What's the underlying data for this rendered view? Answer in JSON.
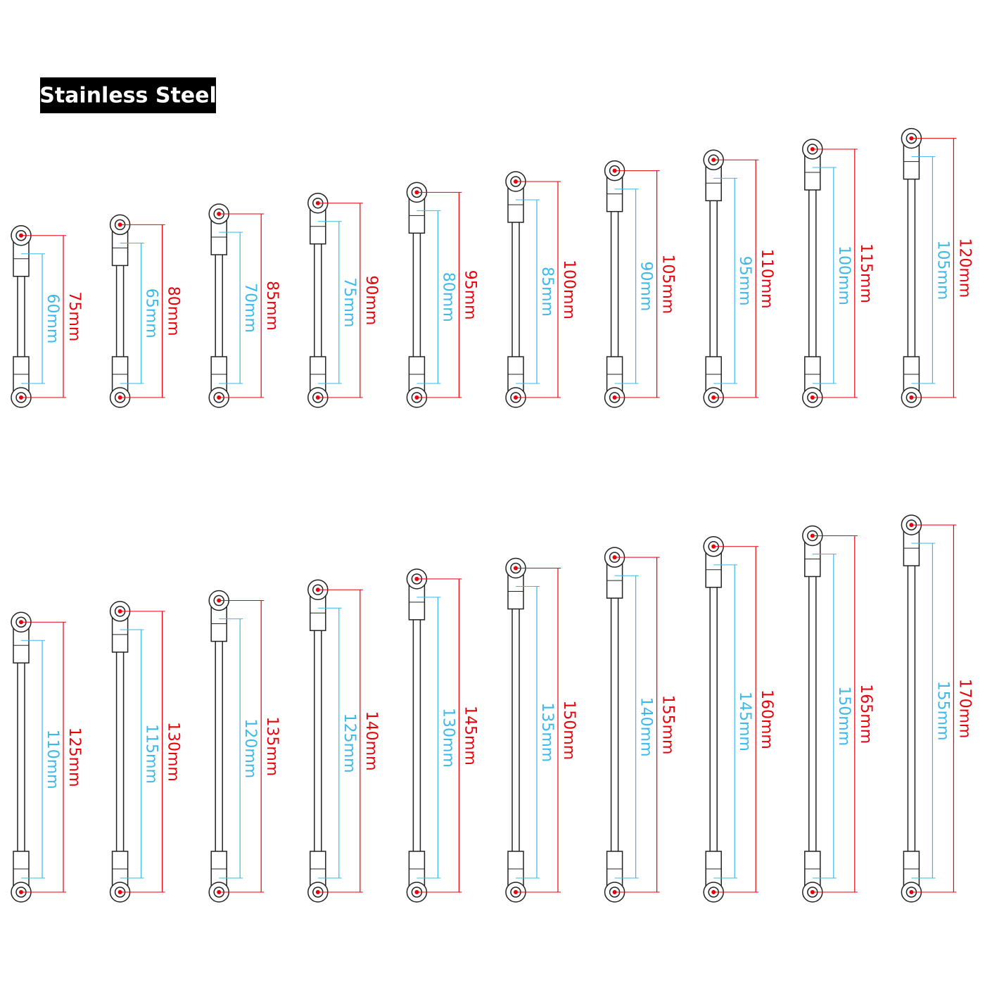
{
  "header": {
    "title": "Stainless Steel"
  },
  "rows": [
    {
      "links": [
        {
          "total": {
            "value": 75,
            "label": "75mm"
          },
          "rod": {
            "value": 60,
            "label": "60mm"
          }
        },
        {
          "total": {
            "value": 80,
            "label": "80mm"
          },
          "rod": {
            "value": 65,
            "label": "65mm"
          }
        },
        {
          "total": {
            "value": 85,
            "label": "85mm"
          },
          "rod": {
            "value": 70,
            "label": "70mm"
          }
        },
        {
          "total": {
            "value": 90,
            "label": "90mm"
          },
          "rod": {
            "value": 75,
            "label": "75mm"
          }
        },
        {
          "total": {
            "value": 95,
            "label": "95mm"
          },
          "rod": {
            "value": 80,
            "label": "80mm"
          }
        },
        {
          "total": {
            "value": 100,
            "label": "100mm"
          },
          "rod": {
            "value": 85,
            "label": "85mm"
          }
        },
        {
          "total": {
            "value": 105,
            "label": "105mm"
          },
          "rod": {
            "value": 90,
            "label": "90mm"
          }
        },
        {
          "total": {
            "value": 110,
            "label": "110mm"
          },
          "rod": {
            "value": 95,
            "label": "95mm"
          }
        },
        {
          "total": {
            "value": 115,
            "label": "115mm"
          },
          "rod": {
            "value": 100,
            "label": "100mm"
          }
        },
        {
          "total": {
            "value": 120,
            "label": "120mm"
          },
          "rod": {
            "value": 105,
            "label": "105mm"
          }
        }
      ]
    },
    {
      "links": [
        {
          "total": {
            "value": 125,
            "label": "125mm"
          },
          "rod": {
            "value": 110,
            "label": "110mm"
          }
        },
        {
          "total": {
            "value": 130,
            "label": "130mm"
          },
          "rod": {
            "value": 115,
            "label": "115mm"
          }
        },
        {
          "total": {
            "value": 135,
            "label": "135mm"
          },
          "rod": {
            "value": 120,
            "label": "120mm"
          }
        },
        {
          "total": {
            "value": 140,
            "label": "140mm"
          },
          "rod": {
            "value": 125,
            "label": "125mm"
          }
        },
        {
          "total": {
            "value": 145,
            "label": "145mm"
          },
          "rod": {
            "value": 130,
            "label": "130mm"
          }
        },
        {
          "total": {
            "value": 150,
            "label": "150mm"
          },
          "rod": {
            "value": 135,
            "label": "135mm"
          }
        },
        {
          "total": {
            "value": 155,
            "label": "155mm"
          },
          "rod": {
            "value": 140,
            "label": "140mm"
          }
        },
        {
          "total": {
            "value": 160,
            "label": "160mm"
          },
          "rod": {
            "value": 145,
            "label": "145mm"
          }
        },
        {
          "total": {
            "value": 165,
            "label": "165mm"
          },
          "rod": {
            "value": 150,
            "label": "150mm"
          }
        },
        {
          "total": {
            "value": 170,
            "label": "170mm"
          },
          "rod": {
            "value": 155,
            "label": "155mm"
          }
        }
      ]
    }
  ]
}
